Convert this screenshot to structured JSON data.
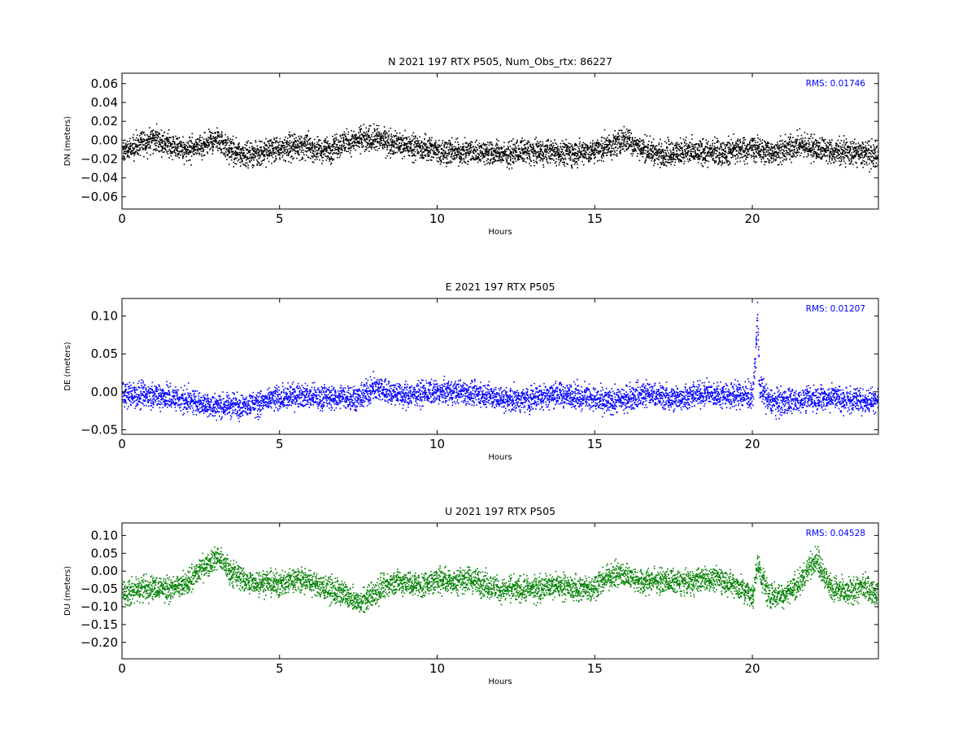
{
  "chart_data": [
    {
      "type": "scatter",
      "title": "N 2021 197 RTX  P505, Num_Obs_rtx: 86227",
      "xlabel": "Hours",
      "ylabel": "DN (meters)",
      "xlim": [
        0,
        24
      ],
      "ylim": [
        -0.073,
        0.071
      ],
      "xticks": [
        0,
        5,
        10,
        15,
        20
      ],
      "yticks": [
        -0.06,
        -0.04,
        -0.02,
        0.0,
        0.02,
        0.04,
        0.06
      ],
      "ytick_labels": [
        "−0.06",
        "−0.04",
        "−0.02",
        "0.00",
        "0.02",
        "0.04",
        "0.06"
      ],
      "rms_label": "RMS:  0.01746",
      "color": "#000000",
      "rms_color": "#0000ff",
      "series": [
        {
          "x": [
            0,
            0.5,
            1,
            1.5,
            2,
            2.5,
            3,
            3.5,
            4,
            4.5,
            5,
            5.5,
            6,
            6.5,
            7,
            7.5,
            8,
            8.5,
            9,
            9.5,
            10,
            10.5,
            11,
            11.5,
            12,
            12.5,
            13,
            13.5,
            14,
            14.5,
            15,
            15.5,
            16,
            16.5,
            17,
            17.5,
            18,
            18.5,
            19,
            19.5,
            20,
            20.5,
            21,
            21.5,
            22,
            22.5,
            23,
            23.5,
            24
          ],
          "y": [
            -0.012,
            -0.005,
            0.002,
            -0.005,
            -0.01,
            -0.008,
            0.002,
            -0.012,
            -0.015,
            -0.012,
            -0.008,
            -0.005,
            -0.008,
            -0.01,
            -0.002,
            0.0,
            0.002,
            -0.002,
            -0.005,
            -0.008,
            -0.01,
            -0.012,
            -0.012,
            -0.012,
            -0.014,
            -0.012,
            -0.012,
            -0.012,
            -0.013,
            -0.012,
            -0.01,
            -0.005,
            0.002,
            -0.008,
            -0.014,
            -0.012,
            -0.012,
            -0.012,
            -0.012,
            -0.01,
            -0.008,
            -0.012,
            -0.01,
            -0.005,
            -0.008,
            -0.012,
            -0.012,
            -0.014,
            -0.016
          ]
        }
      ]
    },
    {
      "type": "scatter",
      "title": "E 2021 197 RTX  P505",
      "xlabel": "Hours",
      "ylabel": "DE (meters)",
      "xlim": [
        0,
        24
      ],
      "ylim": [
        -0.056,
        0.123
      ],
      "xticks": [
        0,
        5,
        10,
        15,
        20
      ],
      "yticks": [
        -0.05,
        0.0,
        0.05,
        0.1
      ],
      "ytick_labels": [
        "−0.05",
        "0.00",
        "0.05",
        "0.10"
      ],
      "rms_label": "RMS:  0.01207",
      "color": "#0000ff",
      "rms_color": "#0000ff",
      "series": [
        {
          "x": [
            0,
            0.5,
            1,
            1.5,
            2,
            2.5,
            3,
            3.5,
            4,
            4.5,
            5,
            5.5,
            6,
            6.5,
            7,
            7.5,
            8,
            8.5,
            9,
            9.5,
            10,
            10.5,
            11,
            11.5,
            12,
            12.5,
            13,
            13.5,
            14,
            14.5,
            15,
            15.5,
            16,
            16.5,
            17,
            17.5,
            18,
            18.5,
            19,
            19.5,
            20,
            20.1,
            20.15,
            20.2,
            20.5,
            21,
            21.5,
            22,
            22.5,
            23,
            23.5,
            24
          ],
          "y": [
            -0.002,
            -0.005,
            -0.003,
            -0.008,
            -0.01,
            -0.015,
            -0.018,
            -0.018,
            -0.016,
            -0.012,
            -0.008,
            -0.004,
            -0.006,
            -0.008,
            -0.006,
            -0.008,
            0.008,
            0.0,
            -0.004,
            -0.002,
            0.0,
            0.002,
            0.0,
            -0.003,
            -0.008,
            -0.01,
            -0.008,
            -0.004,
            -0.003,
            -0.005,
            -0.008,
            -0.012,
            -0.008,
            -0.002,
            -0.004,
            -0.008,
            -0.005,
            -0.002,
            -0.003,
            -0.004,
            -0.003,
            0.06,
            0.115,
            0.01,
            -0.012,
            -0.012,
            -0.01,
            -0.008,
            -0.006,
            -0.01,
            -0.012,
            -0.006
          ]
        }
      ]
    },
    {
      "type": "scatter",
      "title": "U 2021 197 RTX  P505",
      "xlabel": "Hours",
      "ylabel": "DU (meters)",
      "xlim": [
        0,
        24
      ],
      "ylim": [
        -0.246,
        0.135
      ],
      "xticks": [
        0,
        5,
        10,
        15,
        20
      ],
      "yticks": [
        -0.2,
        -0.15,
        -0.1,
        -0.05,
        0.0,
        0.05,
        0.1
      ],
      "ytick_labels": [
        "−0.20",
        "−0.15",
        "−0.10",
        "−0.05",
        "0.00",
        "0.05",
        "0.10"
      ],
      "rms_label": "RMS:  0.04528",
      "color": "#008000",
      "rms_color": "#0000ff",
      "series": [
        {
          "x": [
            0,
            0.5,
            1,
            1.5,
            2,
            2.5,
            3,
            3.5,
            4,
            4.5,
            5,
            5.5,
            6,
            6.5,
            7,
            7.5,
            8,
            8.5,
            9,
            9.5,
            10,
            10.5,
            11,
            11.5,
            12,
            12.5,
            13,
            13.5,
            14,
            14.5,
            15,
            15.5,
            16,
            16.5,
            17,
            17.5,
            18,
            18.5,
            19,
            19.5,
            20,
            20.15,
            20.5,
            21,
            21.5,
            22,
            22.5,
            23,
            23.5,
            24
          ],
          "y": [
            -0.06,
            -0.05,
            -0.04,
            -0.05,
            -0.04,
            0.01,
            0.04,
            -0.005,
            -0.03,
            -0.03,
            -0.035,
            -0.02,
            -0.03,
            -0.05,
            -0.06,
            -0.09,
            -0.06,
            -0.03,
            -0.03,
            -0.04,
            -0.02,
            -0.03,
            -0.02,
            -0.035,
            -0.05,
            -0.05,
            -0.05,
            -0.04,
            -0.04,
            -0.05,
            -0.04,
            -0.01,
            -0.01,
            -0.03,
            -0.02,
            -0.03,
            -0.03,
            -0.02,
            -0.02,
            -0.04,
            -0.07,
            0.02,
            -0.07,
            -0.06,
            -0.03,
            0.04,
            -0.05,
            -0.06,
            -0.04,
            -0.06
          ]
        }
      ]
    }
  ]
}
